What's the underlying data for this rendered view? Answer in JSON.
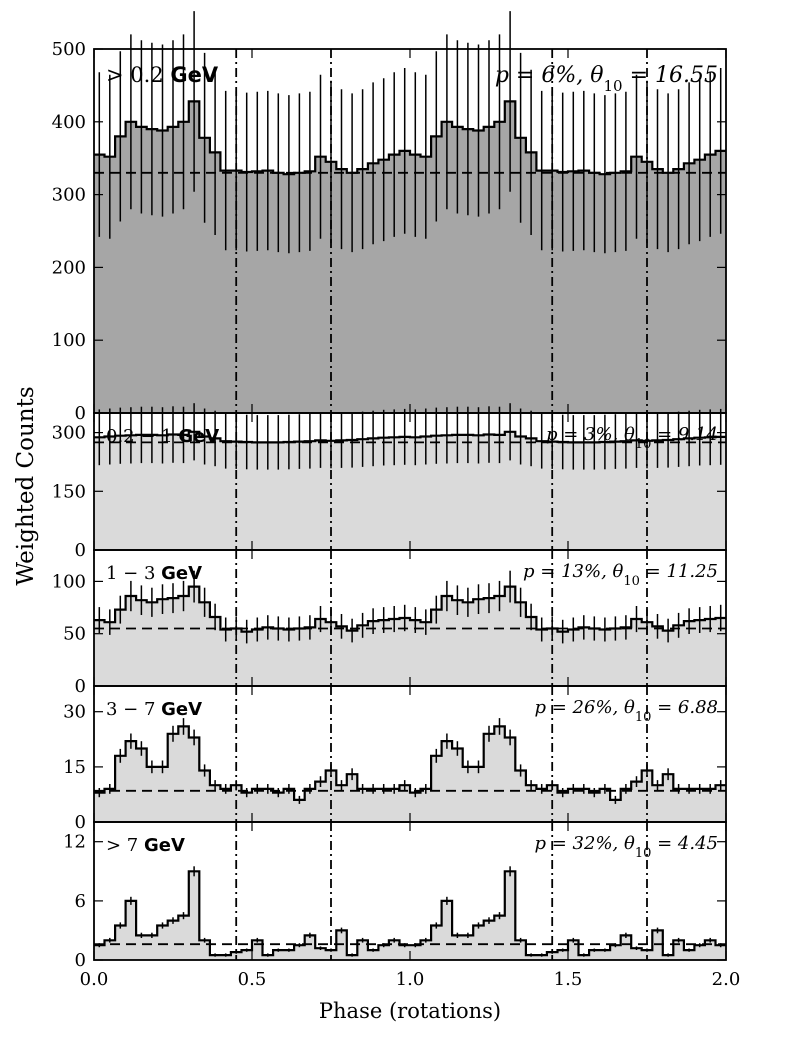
{
  "chart_data": {
    "type": "step-histogram",
    "xlabel": "Phase (rotations)",
    "ylabel": "Weighted Counts",
    "xlim": [
      0.0,
      2.0
    ],
    "x_ticks": [
      0.0,
      0.5,
      1.0,
      1.5,
      2.0
    ],
    "x_tick_labels": [
      "0.0",
      "0.5",
      "1.0",
      "1.5",
      "2.0"
    ],
    "vertical_lines": [
      0.45,
      0.75,
      1.45,
      1.75
    ],
    "grid": false,
    "panels": [
      {
        "label": "> 0.2 GeV",
        "stats": "p = 6%, θ10 = 16.55",
        "ylim": [
          0,
          500
        ],
        "y_ticks": [
          0,
          100,
          200,
          300,
          400,
          500
        ],
        "baseline": 330,
        "fill": "#a6a6a6",
        "values": [
          355,
          352,
          380,
          400,
          393,
          390,
          388,
          393,
          400,
          428,
          378,
          358,
          333,
          333,
          331,
          332,
          333,
          330,
          328,
          330,
          332,
          352,
          345,
          335,
          330,
          335,
          343,
          348,
          355,
          360
        ]
      },
      {
        "label": "0.2 − 1 GeV",
        "stats": "p = 3%, θ10 = 9.14",
        "ylim": [
          0,
          350
        ],
        "y_ticks": [
          0,
          150,
          300
        ],
        "baseline": 275,
        "fill": "#dadada",
        "values": [
          288,
          290,
          292,
          293,
          294,
          294,
          293,
          295,
          294,
          302,
          290,
          285,
          278,
          277,
          276,
          275,
          275,
          275,
          276,
          277,
          278,
          280,
          279,
          280,
          281,
          283,
          285,
          287,
          288,
          289
        ]
      },
      {
        "label": "1 − 3 GeV",
        "stats": "p = 13%, θ10 = 11.25",
        "ylim": [
          0,
          130
        ],
        "y_ticks": [
          0,
          50,
          100
        ],
        "baseline": 55,
        "fill": "#dadada",
        "values": [
          63,
          61,
          73,
          86,
          82,
          80,
          83,
          84,
          86,
          95,
          80,
          66,
          54,
          55,
          52,
          54,
          56,
          55,
          54,
          55,
          56,
          64,
          61,
          57,
          53,
          58,
          62,
          63,
          64,
          65
        ]
      },
      {
        "label": "3 − 7 GeV",
        "stats": "p = 26%, θ10 = 6.88",
        "ylim": [
          0,
          37
        ],
        "y_ticks": [
          0,
          15,
          30
        ],
        "baseline": 8.5,
        "fill": "#dadada",
        "values": [
          8,
          9,
          18,
          22,
          20,
          15,
          15,
          24,
          26,
          23,
          14,
          10,
          9,
          10,
          8,
          9,
          9,
          8,
          9,
          6,
          9,
          11,
          14,
          10,
          13,
          9,
          9,
          9,
          9,
          10
        ]
      },
      {
        "label": "> 7 GeV",
        "stats": "p = 32%, θ10 = 4.45",
        "ylim": [
          0,
          14
        ],
        "y_ticks": [
          0,
          6,
          12
        ],
        "baseline": 1.6,
        "fill": "#dadada",
        "values": [
          1.5,
          2,
          3.5,
          6,
          2.5,
          2.5,
          3.5,
          4,
          4.5,
          9,
          2,
          0.5,
          0.5,
          0.8,
          1,
          2,
          0.5,
          1,
          1,
          1.5,
          2.5,
          1.2,
          1,
          3,
          0.5,
          2,
          1,
          1.5,
          2,
          1.5
        ]
      }
    ]
  }
}
